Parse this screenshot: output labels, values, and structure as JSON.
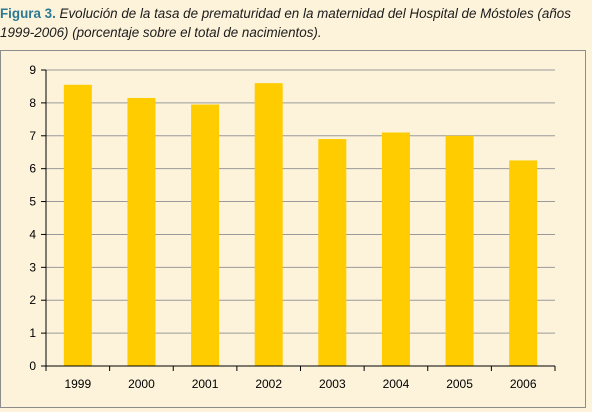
{
  "caption": {
    "label": "Figura 3.",
    "text": "Evolución de la tasa de prematuridad en la maternidad del Hospital de Móstoles (años 1999-2006) (porcentaje sobre el total de nacimientos)."
  },
  "colors": {
    "bar": "#ffcc00",
    "grid": "#9a9a9a",
    "axis": "#000000",
    "background": "#fdf3db"
  },
  "chart_data": {
    "type": "bar",
    "categories": [
      "1999",
      "2000",
      "2001",
      "2002",
      "2003",
      "2004",
      "2005",
      "2006"
    ],
    "values": [
      8.55,
      8.15,
      7.95,
      8.6,
      6.9,
      7.1,
      7.0,
      6.25
    ],
    "title": "",
    "xlabel": "",
    "ylabel": "",
    "ylim": [
      0,
      9
    ],
    "yticks": [
      "0",
      "1",
      "2",
      "3",
      "4",
      "5",
      "6",
      "7",
      "8",
      "9"
    ],
    "grid": true,
    "legend": "none"
  }
}
